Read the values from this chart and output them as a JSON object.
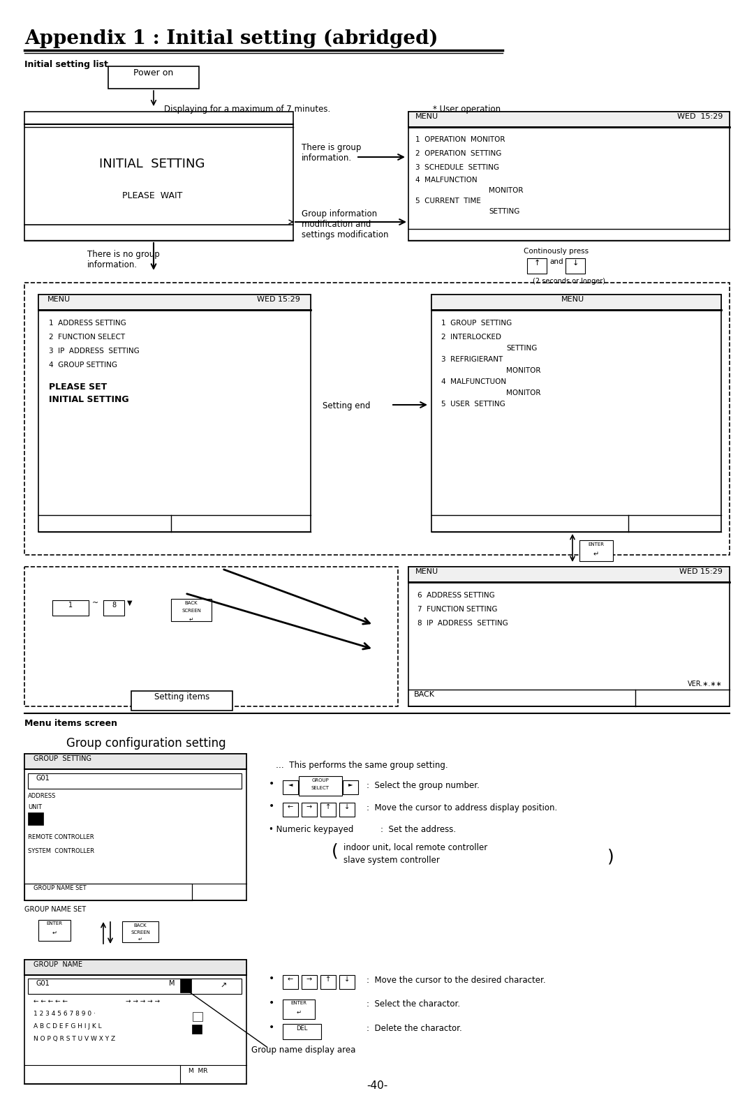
{
  "title": "Appendix 1 : Initial setting (abridged)",
  "subtitle": "Initial setting list",
  "bg_color": "#ffffff",
  "text_color": "#000000",
  "page_number": "-40-"
}
